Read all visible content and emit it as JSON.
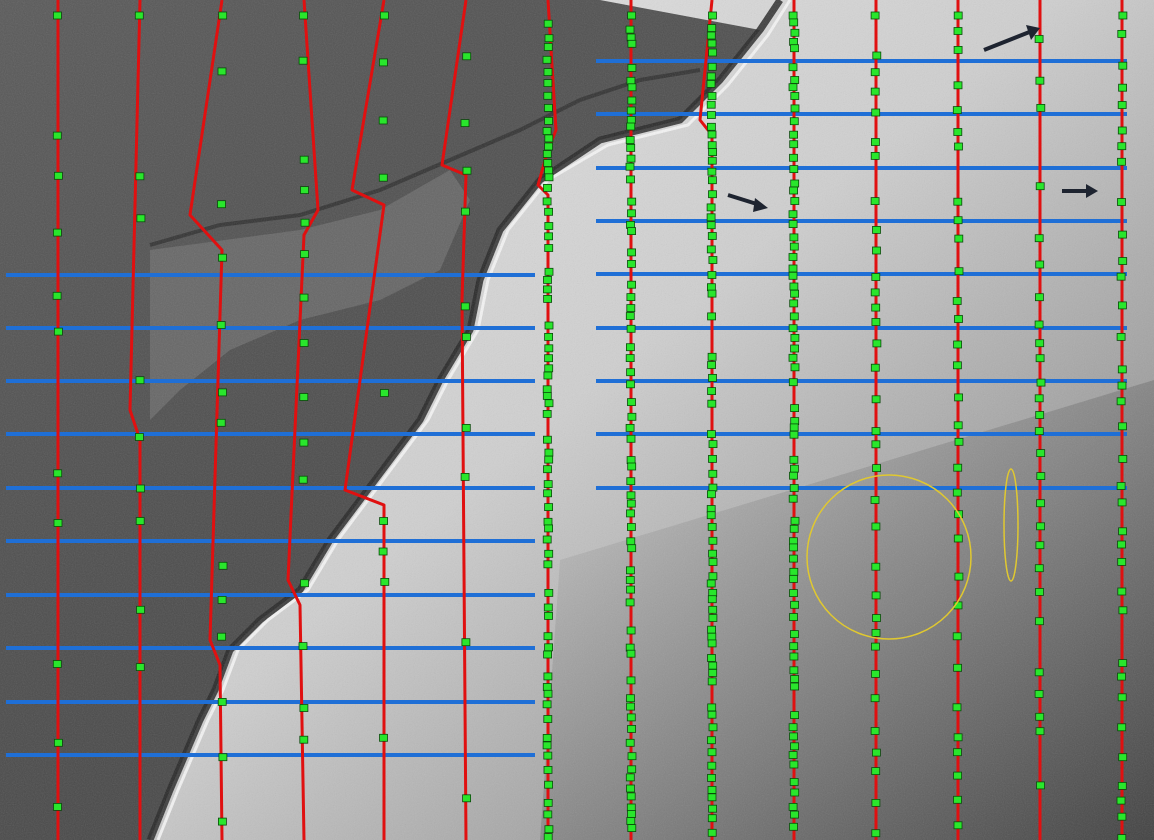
{
  "map": {
    "colors": {
      "upland_light": "#e2e2e2",
      "lowland_dark": "#4a4a4a",
      "escarpment_shadow": "#262626",
      "transect_red": "#e01010",
      "transect_blue": "#1f6fd6",
      "sample_marker_green": "#29e62c",
      "sample_marker_outline": "#0b4a0b",
      "highlight_yellow": "#e0c830",
      "arrow_dark": "#1e2430"
    },
    "layers": [
      "hillshade-relief",
      "escarpment-ridge",
      "red-survey-transects",
      "blue-survey-transects",
      "green-sample-points",
      "yellow-highlight-circle",
      "yellow-highlight-ellipse",
      "annotation-arrows"
    ],
    "icons": [
      "arrow-icon",
      "arrow-icon",
      "arrow-icon"
    ]
  }
}
